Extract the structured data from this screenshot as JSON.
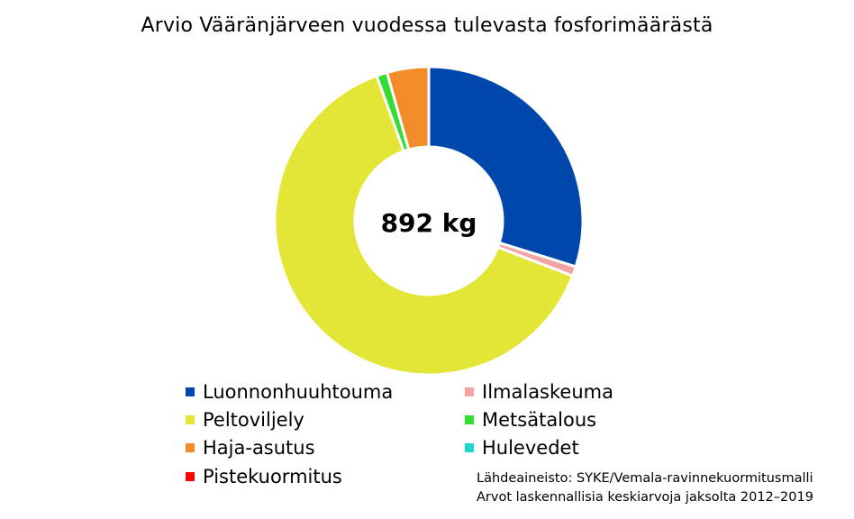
{
  "chart_data": {
    "type": "pie",
    "title": "Arvio Vääränjärveen vuodessa tulevasta fosforimäärästä",
    "center_label": "892 kg",
    "categories": [
      "Luonnonhuuhtouma",
      "Ilmalaskeuma",
      "Peltoviljely",
      "Metsätalous",
      "Haja-asutus",
      "Hulevedet",
      "Pistekuormitus"
    ],
    "values": [
      266,
      9,
      568,
      10,
      39,
      0,
      0
    ],
    "colors": [
      "#0047ab",
      "#f4a3a3",
      "#e3e636",
      "#33dd33",
      "#f28c28",
      "#1fd6cf",
      "#ff0000"
    ],
    "legend_placement": "bottom",
    "notes": [
      "Lähdeaineisto: SYKE/Vemala-ravinnekuormitusmalli",
      "Arvot laskennallisia keskiarvoja jaksolta 2012–2019"
    ]
  }
}
